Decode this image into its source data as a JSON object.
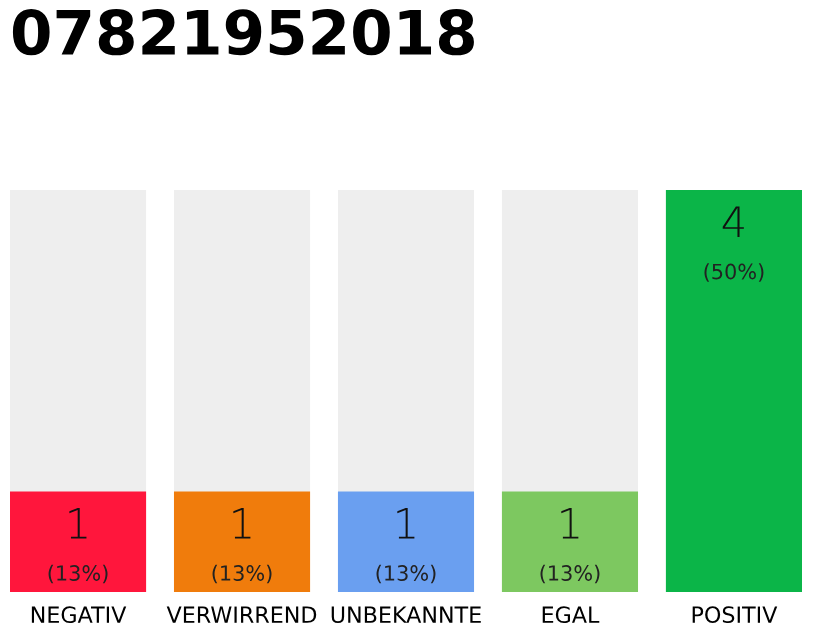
{
  "chart_data": {
    "type": "bar",
    "title": "07821952018",
    "categories": [
      "NEGATIV",
      "VERWIRREND",
      "UNBEKANNTE",
      "EGAL",
      "POSITIV"
    ],
    "values": [
      1,
      1,
      1,
      1,
      4
    ],
    "colors": [
      "#ff163c",
      "#f07c0c",
      "#6a9ff0",
      "#7dc860",
      "#0bb548"
    ],
    "ylim": [
      0,
      4
    ],
    "tick_labels": "x",
    "data_labels": true,
    "grid": false,
    "legend": false,
    "annotations": [
      "(13%)",
      "(13%)",
      "(13%)",
      "(13%)",
      "(50%)"
    ]
  }
}
